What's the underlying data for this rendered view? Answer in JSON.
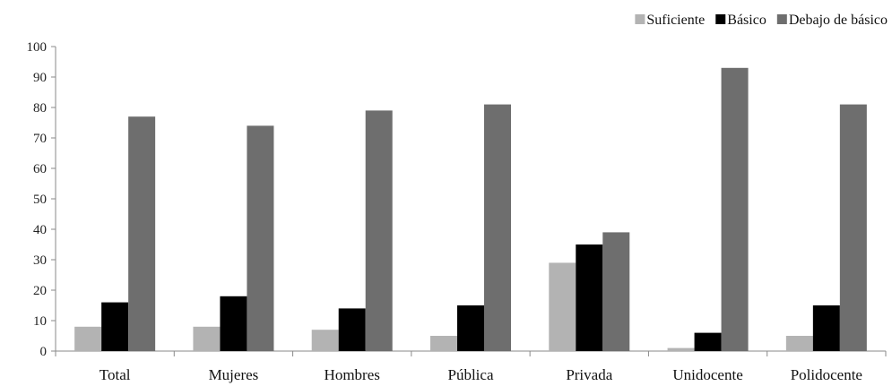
{
  "chart_data": {
    "type": "bar",
    "title": "",
    "xlabel": "",
    "ylabel": "",
    "ylim": [
      0,
      100
    ],
    "yticks": [
      0,
      10,
      20,
      30,
      40,
      50,
      60,
      70,
      80,
      90,
      100
    ],
    "grid": false,
    "legend_position": "top-right",
    "categories": [
      "Total",
      "Mujeres",
      "Hombres",
      "Pública",
      "Privada",
      "Unidocente",
      "Polidocente"
    ],
    "series": [
      {
        "name": "Suficiente",
        "color": "#b3b3b3",
        "values": [
          8,
          8,
          7,
          5,
          29,
          1,
          5
        ]
      },
      {
        "name": "Básico",
        "color": "#000000",
        "values": [
          16,
          18,
          14,
          15,
          35,
          6,
          15
        ]
      },
      {
        "name": "Debajo de básico",
        "color": "#6e6e6e",
        "values": [
          77,
          74,
          79,
          81,
          39,
          93,
          81
        ]
      }
    ]
  }
}
